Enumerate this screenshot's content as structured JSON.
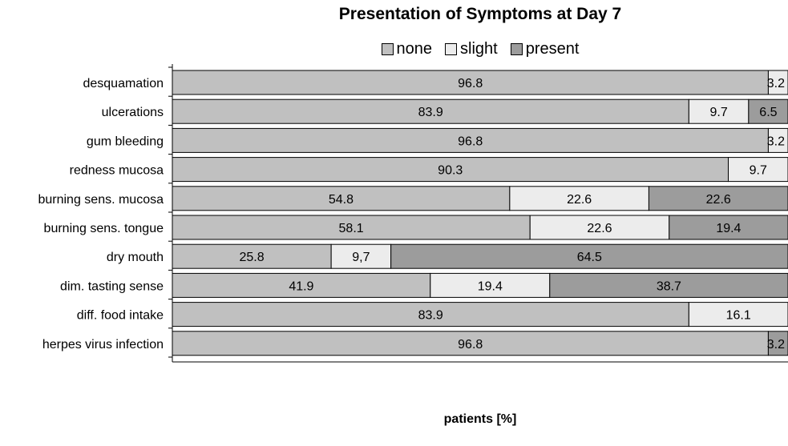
{
  "chart_data": {
    "type": "bar",
    "orientation": "horizontal",
    "stacked": true,
    "title": "Presentation of Symptoms at Day 7",
    "xlabel": "patients [%]",
    "xlim": [
      0,
      100
    ],
    "legend_position": "top",
    "categories": [
      "desquamation",
      "ulcerations",
      "gum bleeding",
      "redness mucosa",
      "burning sens. mucosa",
      "burning sens. tongue",
      "dry mouth",
      "dim. tasting sense",
      "diff. food intake",
      "herpes virus infection"
    ],
    "series": [
      {
        "name": "none",
        "color": "#c0c0c0",
        "values": [
          96.8,
          83.9,
          96.8,
          90.3,
          54.8,
          58.1,
          25.8,
          41.9,
          83.9,
          96.8
        ],
        "labels": [
          "96.8",
          "83.9",
          "96.8",
          "90.3",
          "54.8",
          "58.1",
          "25.8",
          "41.9",
          "83.9",
          "96.8"
        ]
      },
      {
        "name": "slight",
        "color": "#ececec",
        "values": [
          3.2,
          9.7,
          3.2,
          9.7,
          22.6,
          22.6,
          9.7,
          19.4,
          16.1,
          0
        ],
        "labels": [
          "3.2",
          "9.7",
          "3.2",
          "9.7",
          "22.6",
          "22.6",
          "9,7",
          "19.4",
          "16.1",
          ""
        ]
      },
      {
        "name": "present",
        "color": "#9c9c9c",
        "values": [
          0,
          6.5,
          0,
          0,
          22.6,
          19.4,
          64.5,
          38.7,
          0,
          3.2
        ],
        "labels": [
          "",
          "6.5",
          "",
          "",
          "22.6",
          "19.4",
          "64.5",
          "38.7",
          "",
          "3.2"
        ]
      }
    ]
  }
}
